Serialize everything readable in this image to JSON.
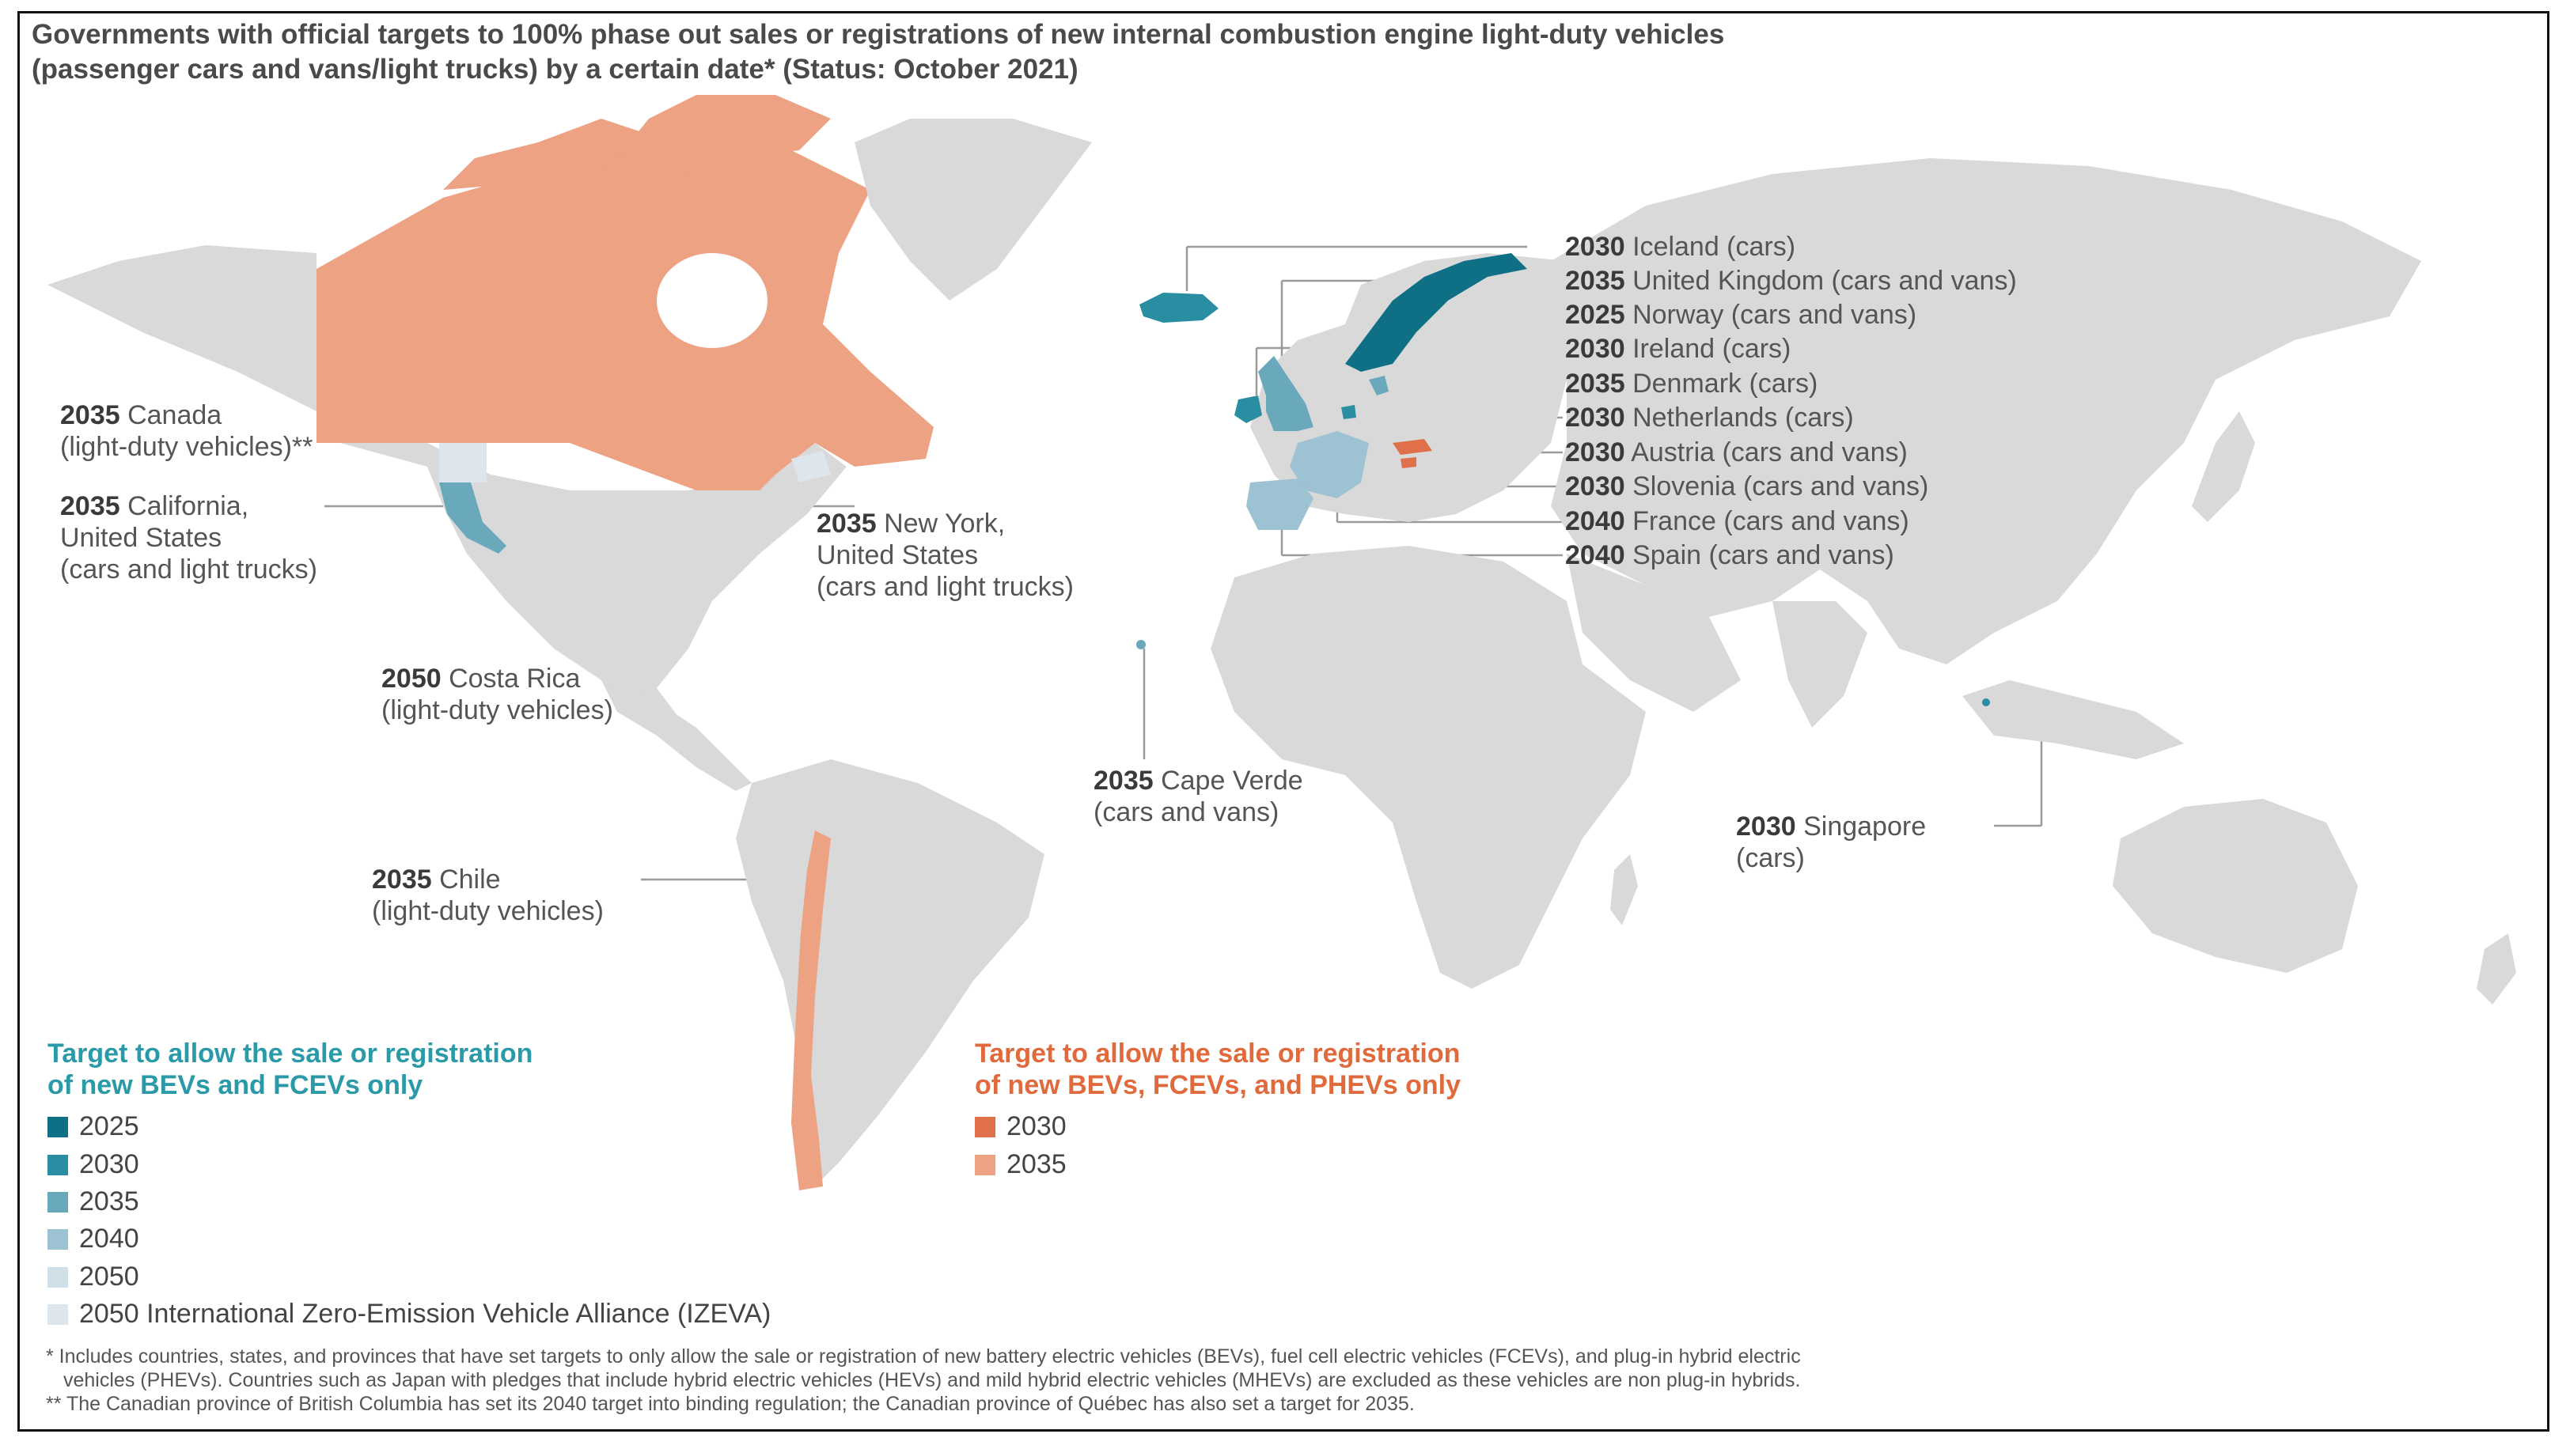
{
  "title": {
    "line1": "Governments with official targets to 100% phase out sales or registrations of new internal combustion engine light-duty vehicles",
    "line2": "(passenger cars and vans/light trucks) by a certain date* (Status: October 2021)"
  },
  "colors": {
    "land": "#d9d9d9",
    "teal_2025": "#0f6f85",
    "teal_2030": "#2a8ea3",
    "teal_2035": "#6aa9bb",
    "teal_2040": "#9dc3d2",
    "teal_2050": "#cfe0e8",
    "izeva": "#dce6ec",
    "orange_2030": "#e0704a",
    "orange_2035": "#eda283",
    "legend_teal_text": "#2a9aa8",
    "legend_orange_text": "#e06a3c",
    "leader": "#999999"
  },
  "labels": {
    "canada": {
      "year": "2035",
      "name": "Canada",
      "sub": "(light-duty vehicles)**"
    },
    "california": {
      "year": "2035",
      "name": "California,",
      "sub1": "United States",
      "sub2": "(cars and light trucks)"
    },
    "newyork": {
      "year": "2035",
      "name": "New York,",
      "sub1": "United States",
      "sub2": "(cars and light trucks)"
    },
    "costarica": {
      "year": "2050",
      "name": "Costa Rica",
      "sub": "(light-duty vehicles)"
    },
    "capeverde": {
      "year": "2035",
      "name": "Cape Verde",
      "sub": "(cars and vans)"
    },
    "chile": {
      "year": "2035",
      "name": "Chile",
      "sub": "(light-duty vehicles)"
    },
    "singapore": {
      "year": "2030",
      "name": "Singapore",
      "sub": "(cars)"
    },
    "europe": [
      {
        "year": "2030",
        "name": "Iceland (cars)"
      },
      {
        "year": "2035",
        "name": "United Kingdom (cars and vans)"
      },
      {
        "year": "2025",
        "name": "Norway (cars and vans)"
      },
      {
        "year": "2030",
        "name": "Ireland (cars)"
      },
      {
        "year": "2035",
        "name": "Denmark (cars)"
      },
      {
        "year": "2030",
        "name": "Netherlands (cars)"
      },
      {
        "year": "2030",
        "name": "Austria (cars and vans)"
      },
      {
        "year": "2030",
        "name": "Slovenia (cars and vans)"
      },
      {
        "year": "2040",
        "name": "France (cars and vans)"
      },
      {
        "year": "2040",
        "name": "Spain (cars and vans)"
      }
    ]
  },
  "legend": {
    "teal_heading1": "Target to allow the sale or registration",
    "teal_heading2": "of new BEVs and FCEVs only",
    "teal_items": [
      "2025",
      "2030",
      "2035",
      "2040",
      "2050",
      "2050 International Zero-Emission Vehicle Alliance (IZEVA)"
    ],
    "orange_heading1": "Target to allow the sale or registration",
    "orange_heading2": "of new BEVs, FCEVs, and PHEVs only",
    "orange_items": [
      "2030",
      "2035"
    ]
  },
  "footnotes": {
    "star1": "* Includes countries, states, and provinces that have set targets to only allow the sale or registration of new battery electric vehicles (BEVs), fuel cell electric vehicles (FCEVs), and plug-in hybrid electric",
    "star2": "vehicles (PHEVs). Countries such as Japan with pledges that include hybrid electric vehicles (HEVs) and mild hybrid electric vehicles (MHEVs) are excluded as these vehicles are non plug-in hybrids.",
    "dstar": "** The Canadian province of British Columbia has set its 2040 target into binding regulation; the Canadian province of Québec has also set a target for 2035."
  }
}
